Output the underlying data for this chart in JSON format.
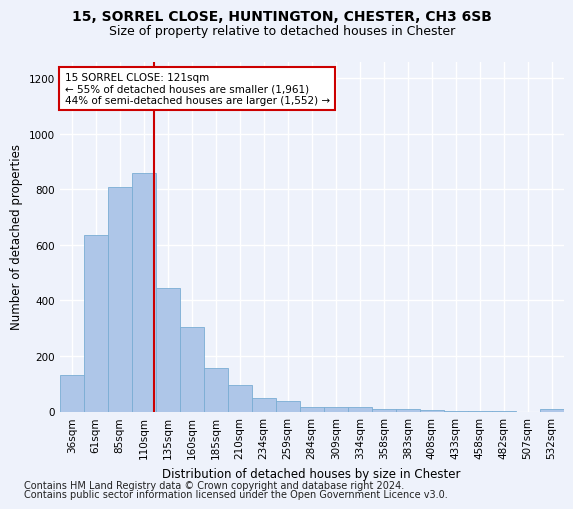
{
  "title1": "15, SORREL CLOSE, HUNTINGTON, CHESTER, CH3 6SB",
  "title2": "Size of property relative to detached houses in Chester",
  "xlabel": "Distribution of detached houses by size in Chester",
  "ylabel": "Number of detached properties",
  "categories": [
    "36sqm",
    "61sqm",
    "85sqm",
    "110sqm",
    "135sqm",
    "160sqm",
    "185sqm",
    "210sqm",
    "234sqm",
    "259sqm",
    "284sqm",
    "309sqm",
    "334sqm",
    "358sqm",
    "383sqm",
    "408sqm",
    "433sqm",
    "458sqm",
    "482sqm",
    "507sqm",
    "532sqm"
  ],
  "values": [
    130,
    635,
    810,
    860,
    445,
    305,
    158,
    95,
    50,
    38,
    17,
    18,
    17,
    10,
    8,
    4,
    3,
    2,
    2,
    0,
    8
  ],
  "bar_color": "#aec6e8",
  "bar_edgecolor": "#7aadd4",
  "vline_color": "#cc0000",
  "annotation_title": "15 SORREL CLOSE: 121sqm",
  "annotation_line1": "← 55% of detached houses are smaller (1,961)",
  "annotation_line2": "44% of semi-detached houses are larger (1,552) →",
  "annotation_box_facecolor": "#ffffff",
  "annotation_box_edgecolor": "#cc0000",
  "ylim": [
    0,
    1260
  ],
  "yticks": [
    0,
    200,
    400,
    600,
    800,
    1000,
    1200
  ],
  "footer1": "Contains HM Land Registry data © Crown copyright and database right 2024.",
  "footer2": "Contains public sector information licensed under the Open Government Licence v3.0.",
  "background_color": "#eef2fb",
  "grid_color": "#ffffff",
  "title1_fontsize": 10,
  "title2_fontsize": 9,
  "xlabel_fontsize": 8.5,
  "ylabel_fontsize": 8.5,
  "tick_fontsize": 7.5,
  "footer_fontsize": 7,
  "annotation_fontsize": 7.5
}
